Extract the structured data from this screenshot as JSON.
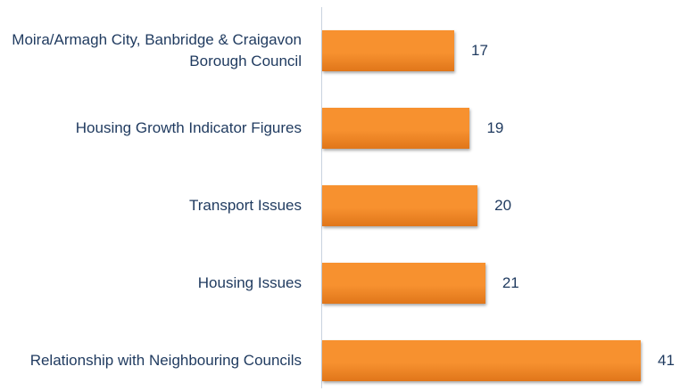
{
  "chart_data": {
    "type": "bar",
    "orientation": "horizontal",
    "categories": [
      "Moira/Armagh City, Banbridge & Craigavon Borough Council",
      "Housing Growth Indicator Figures",
      "Transport Issues",
      "Housing Issues",
      "Relationship with Neighbouring Councils"
    ],
    "values": [
      17,
      19,
      20,
      21,
      41
    ],
    "color": "#f7912f"
  }
}
